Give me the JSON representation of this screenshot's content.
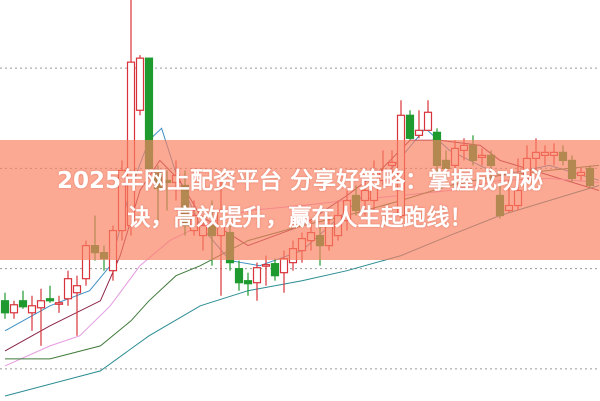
{
  "banner": {
    "line1": "2025年网上配资平台 分享好策略：掌握成功秘",
    "line2": "诀，高效提升，赢在人生起跑线！",
    "color": "#fa8062"
  },
  "chart_data": {
    "type": "candlestick",
    "title": "",
    "xlabel": "",
    "ylabel": "",
    "ylim": [
      0,
      100
    ],
    "grid": true,
    "grid_style": "dotted horizontal",
    "grid_levels": [
      8,
      33,
      58,
      83
    ],
    "colors": {
      "up": "#d8333a",
      "down": "#1f9a2f"
    },
    "candles": [
      [
        25,
        22,
        27,
        20.5
      ],
      [
        22,
        24,
        25,
        20.5
      ],
      [
        25,
        23.5,
        27.5,
        23
      ],
      [
        22,
        23.75,
        26.25,
        17.5
      ],
      [
        23.25,
        25,
        28,
        13.75
      ],
      [
        25.5,
        25,
        28.75,
        24.5
      ],
      [
        24.25,
        24.5,
        26.25,
        22
      ],
      [
        25.5,
        30.5,
        32.5,
        23.75
      ],
      [
        27,
        28.75,
        31.25,
        16.25
      ],
      [
        30.5,
        38.75,
        40,
        28.75
      ],
      [
        38.75,
        37,
        46.25,
        35
      ],
      [
        37,
        35.5,
        38.75,
        32.5
      ],
      [
        32.5,
        42.5,
        43.75,
        30
      ],
      [
        42.5,
        57.5,
        60,
        40
      ],
      [
        43.75,
        84.5,
        100,
        41.25
      ],
      [
        72.5,
        85.5,
        86.25,
        71.25
      ],
      [
        85.5,
        58,
        85.5,
        57
      ],
      [
        57.5,
        53,
        58.75,
        45
      ],
      [
        55,
        54.5,
        57.5,
        47.5
      ],
      [
        54.5,
        56.25,
        60,
        50
      ],
      [
        53.75,
        43.75,
        57.5,
        41.25
      ],
      [
        42.5,
        46.25,
        50,
        41.25
      ],
      [
        41.25,
        43.75,
        46.25,
        37.5
      ],
      [
        43.75,
        41.25,
        50,
        33.75
      ],
      [
        41.25,
        47.5,
        55,
        26.25
      ],
      [
        42,
        34.5,
        43.75,
        32.5
      ],
      [
        33,
        29.5,
        35,
        27.5
      ],
      [
        30,
        29.25,
        32,
        26.25
      ],
      [
        29.5,
        33.25,
        34.5,
        25
      ],
      [
        33.75,
        34,
        36.25,
        28.75
      ],
      [
        34.25,
        31.25,
        35.5,
        30
      ],
      [
        32,
        35.5,
        37.5,
        27
      ],
      [
        34.5,
        38,
        40,
        32.5
      ],
      [
        37.5,
        40.5,
        42,
        34.5
      ],
      [
        40,
        42,
        45,
        37.5
      ],
      [
        41.25,
        38.75,
        43.75,
        33.75
      ],
      [
        38.75,
        43.75,
        46.25,
        37.5
      ],
      [
        41.25,
        46.25,
        50,
        40
      ],
      [
        45,
        50,
        52.5,
        42.5
      ],
      [
        51.25,
        47.5,
        53.75,
        46.25
      ],
      [
        50,
        52.5,
        55,
        46.25
      ],
      [
        50,
        57.5,
        60,
        47.5
      ],
      [
        55,
        57.5,
        62.5,
        53.75
      ],
      [
        58.75,
        59.5,
        62.5,
        56.25
      ],
      [
        46.25,
        71.25,
        75,
        45
      ],
      [
        71.25,
        65.5,
        72.5,
        65
      ],
      [
        66.25,
        67.5,
        72.5,
        65.5
      ],
      [
        67.5,
        72,
        75,
        67.5
      ],
      [
        67,
        58.75,
        68,
        56.25
      ],
      [
        60,
        58,
        62.5,
        55
      ],
      [
        58.75,
        63,
        65,
        57.5
      ],
      [
        62.5,
        63.75,
        65.5,
        60
      ],
      [
        63.75,
        60,
        66.25,
        58.75
      ],
      [
        60.75,
        61.25,
        63,
        58.75
      ],
      [
        61.25,
        58.75,
        62.5,
        55
      ],
      [
        51.25,
        46.25,
        53.75,
        45.5
      ],
      [
        47.5,
        48.75,
        55,
        47
      ],
      [
        48.75,
        52.5,
        60.5,
        47.5
      ],
      [
        55.5,
        60.5,
        63.75,
        55
      ],
      [
        60.5,
        62,
        65.5,
        57.5
      ],
      [
        61.25,
        62,
        63.75,
        58.75
      ],
      [
        61.25,
        62,
        64.25,
        58.75
      ],
      [
        62,
        60,
        63.75,
        58.75
      ],
      [
        60,
        55.5,
        61.25,
        54.5
      ],
      [
        56.25,
        57,
        58,
        55
      ],
      [
        58,
        53.75,
        58.75,
        53
      ]
    ],
    "candle_fields": [
      "open",
      "close",
      "high",
      "low"
    ],
    "moving_averages": [
      {
        "color": "#3d8fc4",
        "points": [
          [
            0,
            17.5
          ],
          [
            5,
            23.75
          ],
          [
            9.4,
            27.5
          ],
          [
            11.7,
            33.75
          ],
          [
            13.9,
            52.5
          ],
          [
            16,
            65
          ],
          [
            17.4,
            68
          ],
          [
            18.9,
            57.5
          ],
          [
            21.7,
            43.75
          ],
          [
            25,
            35
          ],
          [
            28.3,
            33.75
          ],
          [
            33,
            37.5
          ],
          [
            38,
            47.5
          ],
          [
            42.8,
            57.5
          ],
          [
            46.7,
            68
          ],
          [
            49.4,
            62.5
          ],
          [
            55,
            56.25
          ],
          [
            60.5,
            58.75
          ],
          [
            66,
            55
          ]
        ]
      },
      {
        "color": "#8b2348",
        "points": [
          [
            0,
            12.5
          ],
          [
            5,
            18.75
          ],
          [
            10.6,
            25
          ],
          [
            12.8,
            36.25
          ],
          [
            15,
            52.5
          ],
          [
            17.2,
            60
          ],
          [
            19.4,
            55
          ],
          [
            21.7,
            46.25
          ],
          [
            27,
            38.75
          ],
          [
            33,
            43.75
          ],
          [
            38,
            51.25
          ],
          [
            41.7,
            57.5
          ],
          [
            45,
            65
          ],
          [
            48.3,
            65
          ],
          [
            52.8,
            63.75
          ],
          [
            55,
            60
          ],
          [
            60.5,
            56.25
          ],
          [
            66,
            52.5
          ]
        ]
      },
      {
        "color": "#e59ae0",
        "points": [
          [
            0,
            8.75
          ],
          [
            5,
            13.75
          ],
          [
            8.3,
            16.25
          ],
          [
            11.7,
            23.75
          ],
          [
            15,
            33.75
          ],
          [
            18.3,
            40
          ],
          [
            21.7,
            43.75
          ],
          [
            27,
            47.5
          ],
          [
            33,
            48.75
          ],
          [
            38,
            50
          ],
          [
            44,
            51.25
          ],
          [
            49.4,
            52.5
          ],
          [
            55,
            55
          ],
          [
            60.5,
            55.5
          ],
          [
            66,
            54.5
          ]
        ]
      },
      {
        "color": "#3f7a3a",
        "points": [
          [
            0,
            10.5
          ],
          [
            5,
            10.5
          ],
          [
            10.6,
            13.75
          ],
          [
            14,
            20
          ],
          [
            16,
            25
          ],
          [
            19,
            31.25
          ],
          [
            21.7,
            33.75
          ],
          [
            27,
            40
          ],
          [
            33,
            43.75
          ],
          [
            38,
            46.25
          ],
          [
            44,
            50
          ],
          [
            49.4,
            53.75
          ],
          [
            55,
            56.25
          ],
          [
            60.5,
            57.5
          ],
          [
            66,
            58.75
          ]
        ]
      },
      {
        "color": "#2a8c92",
        "points": [
          [
            0,
            1.25
          ],
          [
            10.6,
            7.5
          ],
          [
            16,
            16.25
          ],
          [
            21.7,
            23.75
          ],
          [
            27,
            27.5
          ],
          [
            33,
            30
          ],
          [
            38,
            32.5
          ],
          [
            44,
            36.25
          ],
          [
            49.4,
            41.25
          ],
          [
            55,
            46.25
          ],
          [
            60.5,
            50
          ],
          [
            66,
            53.75
          ]
        ]
      }
    ]
  }
}
